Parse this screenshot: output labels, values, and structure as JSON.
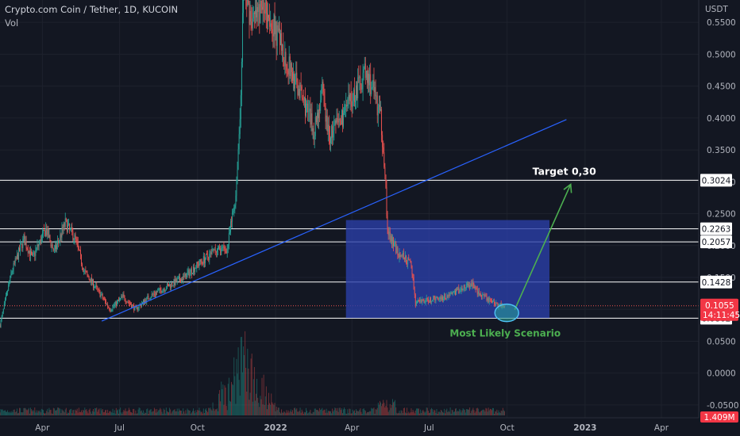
{
  "header": {
    "symbol_line": "Crypto.com Coin / Tether, 1D, KUCOIN",
    "vol_label": "Vol"
  },
  "axis": {
    "currency": "USDT"
  },
  "chart_data": {
    "type": "candlestick",
    "title": "Crypto.com Coin / Tether, 1D, KUCOIN",
    "ylabel": "USDT",
    "ylim": [
      -0.07,
      0.585
    ],
    "y_ticks": [
      0.55,
      0.5,
      0.45,
      0.4,
      0.35,
      0.3,
      0.25,
      0.2,
      0.15,
      0.1,
      0.05,
      0.0,
      -0.05
    ],
    "y_tick_labels": [
      "0.5500",
      "0.5000",
      "0.4500",
      "0.4000",
      "0.3500",
      "0.3000",
      "0.2500",
      "0.2000",
      "0.1500",
      "0.1000",
      "0.0500",
      "0.0000",
      "-0.0500"
    ],
    "x_ticks": [
      "Apr",
      "Jul",
      "Oct",
      "2022",
      "Apr",
      "Jul",
      "Oct",
      "2023",
      "Apr"
    ],
    "x_tick_values": [
      "2021-04-01",
      "2021-07-01",
      "2021-10-01",
      "2022-01-01",
      "2022-04-01",
      "2022-07-01",
      "2022-10-01",
      "2023-01-01",
      "2023-04-01"
    ],
    "x_range": [
      "2021-02-10",
      "2023-05-15"
    ],
    "price_path": [
      [
        "2021-02-10",
        0.075
      ],
      [
        "2021-02-24",
        0.16
      ],
      [
        "2021-03-10",
        0.21
      ],
      [
        "2021-03-20",
        0.18
      ],
      [
        "2021-04-05",
        0.225
      ],
      [
        "2021-04-15",
        0.19
      ],
      [
        "2021-04-28",
        0.235
      ],
      [
        "2021-05-10",
        0.21
      ],
      [
        "2021-05-20",
        0.16
      ],
      [
        "2021-06-05",
        0.13
      ],
      [
        "2021-06-20",
        0.1
      ],
      [
        "2021-07-05",
        0.12
      ],
      [
        "2021-07-20",
        0.1
      ],
      [
        "2021-08-05",
        0.12
      ],
      [
        "2021-08-25",
        0.135
      ],
      [
        "2021-09-15",
        0.15
      ],
      [
        "2021-10-01",
        0.17
      ],
      [
        "2021-10-20",
        0.19
      ],
      [
        "2021-11-05",
        0.195
      ],
      [
        "2021-11-15",
        0.28
      ],
      [
        "2021-11-20",
        0.4
      ],
      [
        "2021-11-24",
        0.6
      ],
      [
        "2021-12-05",
        0.55
      ],
      [
        "2021-12-20",
        0.58
      ],
      [
        "2022-01-05",
        0.52
      ],
      [
        "2022-01-20",
        0.47
      ],
      [
        "2022-02-05",
        0.42
      ],
      [
        "2022-02-15",
        0.38
      ],
      [
        "2022-02-25",
        0.44
      ],
      [
        "2022-03-05",
        0.37
      ],
      [
        "2022-03-20",
        0.4
      ],
      [
        "2022-04-05",
        0.44
      ],
      [
        "2022-04-15",
        0.47
      ],
      [
        "2022-04-25",
        0.45
      ],
      [
        "2022-05-05",
        0.4
      ],
      [
        "2022-05-10",
        0.32
      ],
      [
        "2022-05-13",
        0.22
      ],
      [
        "2022-05-25",
        0.19
      ],
      [
        "2022-06-10",
        0.17
      ],
      [
        "2022-06-15",
        0.11
      ],
      [
        "2022-07-01",
        0.115
      ],
      [
        "2022-07-20",
        0.12
      ],
      [
        "2022-08-05",
        0.13
      ],
      [
        "2022-08-20",
        0.14
      ],
      [
        "2022-09-01",
        0.12
      ],
      [
        "2022-09-20",
        0.108
      ],
      [
        "2022-09-28",
        0.1055
      ]
    ],
    "horizontal_levels": [
      0.3024,
      0.2263,
      0.2057,
      0.1428,
      0.0862
    ],
    "level_labels": [
      "0.3024",
      "0.2263",
      "0.2057",
      "0.1428",
      "0.0862"
    ],
    "current_price": 0.1055,
    "current_price_label": "0.1055",
    "countdown_label": "14:11:45",
    "volume_label": "1.409M",
    "trendline": [
      [
        "2021-06-10",
        0.0815
      ],
      [
        "2022-12-10",
        0.3975
      ]
    ],
    "zone": {
      "x": [
        "2022-03-25",
        "2022-11-20"
      ],
      "y": [
        0.0865,
        0.24
      ]
    },
    "scenario_path": [
      [
        "2022-10-10",
        0.0995
      ],
      [
        "2022-12-15",
        0.296
      ]
    ],
    "target_point": [
      "2022-12-15",
      0.296
    ],
    "target_label": "Target 0,30",
    "scenario_label": "Most Likely Scenario",
    "colors": {
      "background": "#131722",
      "up": "#26a69a",
      "down": "#ef5350",
      "trendline": "#2962ff",
      "zone": "#2b3ea8",
      "arrow": "#4caf50",
      "level": "#ffffff"
    },
    "grid": true
  }
}
